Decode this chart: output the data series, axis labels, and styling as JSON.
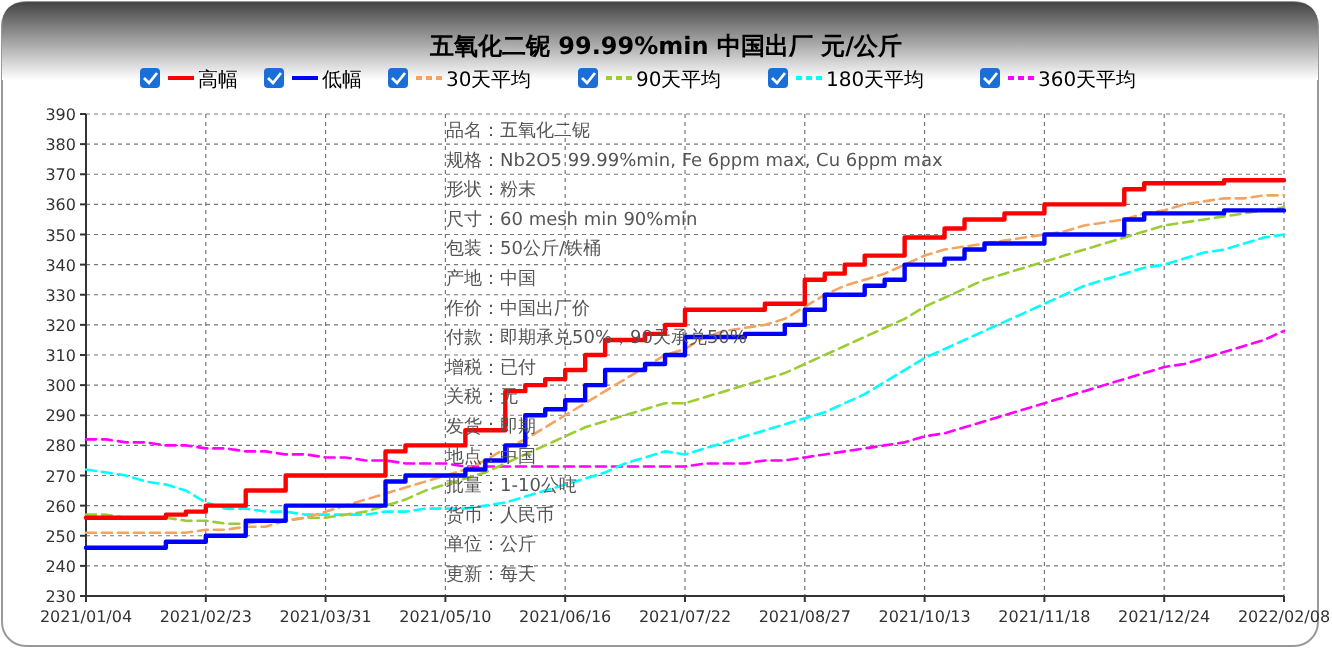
{
  "chart_data": {
    "type": "line",
    "title": "五氧化二铌 99.99%min 中国出厂 元/公斤",
    "categories": [
      "2021/01/04",
      null,
      null,
      null,
      null,
      null,
      "2021/02/23",
      null,
      null,
      null,
      null,
      null,
      "2021/03/31",
      null,
      null,
      null,
      null,
      null,
      "2021/05/10",
      null,
      null,
      null,
      null,
      null,
      "2021/06/16",
      null,
      null,
      null,
      null,
      null,
      "2021/07/22",
      null,
      null,
      null,
      null,
      null,
      "2021/08/27",
      null,
      null,
      null,
      null,
      null,
      "2021/10/13",
      null,
      null,
      null,
      null,
      null,
      "2021/11/18",
      null,
      null,
      null,
      null,
      null,
      "2021/12/24",
      null,
      null,
      null,
      null,
      null,
      "2022/02/08"
    ],
    "series": [
      {
        "name": "高幅",
        "color": "#ff0000",
        "type": "step",
        "line_style": "solid",
        "values": [
          256,
          256,
          256,
          256,
          257,
          258,
          260,
          260,
          265,
          265,
          270,
          270,
          270,
          270,
          270,
          278,
          280,
          280,
          280,
          285,
          285,
          298,
          300,
          302,
          305,
          310,
          315,
          315,
          317,
          320,
          325,
          325,
          325,
          325,
          327,
          327,
          335,
          337,
          340,
          343,
          343,
          349,
          349,
          352,
          355,
          355,
          357,
          357,
          360,
          360,
          360,
          360,
          365,
          367,
          367,
          367,
          367,
          368,
          368,
          368,
          368
        ]
      },
      {
        "name": "低幅",
        "color": "#0000ff",
        "type": "step",
        "line_style": "solid",
        "values": [
          246,
          246,
          246,
          246,
          248,
          248,
          250,
          250,
          255,
          255,
          260,
          260,
          260,
          260,
          260,
          268,
          270,
          270,
          270,
          272,
          275,
          280,
          290,
          292,
          295,
          300,
          305,
          305,
          307,
          310,
          316,
          316,
          316,
          317,
          317,
          320,
          325,
          330,
          330,
          333,
          335,
          340,
          340,
          342,
          345,
          347,
          347,
          347,
          350,
          350,
          350,
          350,
          355,
          357,
          357,
          357,
          357,
          358,
          358,
          358,
          358
        ]
      },
      {
        "name": "30天平均",
        "color": "#f4a460",
        "type": "line",
        "line_style": "dashed",
        "values": [
          251,
          251,
          251,
          251,
          251,
          251,
          252,
          252,
          253,
          253,
          255,
          256,
          258,
          260,
          262,
          264,
          266,
          268,
          270,
          272,
          275,
          279,
          282,
          286,
          290,
          294,
          298,
          302,
          306,
          310,
          312,
          316,
          318,
          319,
          320,
          322,
          326,
          330,
          333,
          335,
          337,
          340,
          343,
          345,
          346,
          347,
          348,
          349,
          350,
          351,
          353,
          354,
          355,
          357,
          358,
          360,
          361,
          362,
          362,
          363,
          363
        ]
      },
      {
        "name": "90天平均",
        "color": "#9acd32",
        "type": "line",
        "line_style": "dashed",
        "values": [
          257,
          257,
          256,
          256,
          256,
          255,
          255,
          254,
          254,
          255,
          255,
          256,
          256,
          257,
          258,
          260,
          262,
          265,
          267,
          269,
          271,
          274,
          277,
          280,
          283,
          286,
          288,
          290,
          292,
          294,
          294,
          296,
          298,
          300,
          302,
          304,
          307,
          310,
          313,
          316,
          319,
          322,
          326,
          329,
          332,
          335,
          337,
          339,
          341,
          343,
          345,
          347,
          349,
          351,
          353,
          354,
          355,
          356,
          357,
          358,
          359
        ]
      },
      {
        "name": "180天平均",
        "color": "#00ffff",
        "type": "line",
        "line_style": "dashed",
        "values": [
          272,
          271,
          270,
          268,
          267,
          265,
          261,
          259,
          259,
          258,
          258,
          257,
          257,
          257,
          257,
          258,
          258,
          259,
          259,
          259,
          260,
          261,
          263,
          265,
          267,
          269,
          271,
          274,
          276,
          278,
          277,
          279,
          281,
          283,
          285,
          287,
          289,
          291,
          294,
          297,
          301,
          305,
          309,
          312,
          315,
          318,
          321,
          324,
          327,
          330,
          333,
          335,
          337,
          339,
          340,
          342,
          344,
          345,
          347,
          349,
          350
        ]
      },
      {
        "name": "360天平均",
        "color": "#ff00ff",
        "type": "line",
        "line_style": "dashed",
        "values": [
          282,
          282,
          281,
          281,
          280,
          280,
          279,
          279,
          278,
          278,
          277,
          277,
          276,
          276,
          275,
          275,
          274,
          274,
          274,
          273,
          273,
          273,
          273,
          273,
          273,
          273,
          273,
          273,
          273,
          273,
          273,
          274,
          274,
          274,
          275,
          275,
          276,
          277,
          278,
          279,
          280,
          281,
          283,
          284,
          286,
          288,
          290,
          292,
          294,
          296,
          298,
          300,
          302,
          304,
          306,
          307,
          309,
          311,
          313,
          315,
          318
        ]
      }
    ],
    "ylim": [
      230,
      390
    ],
    "yticks": [
      230,
      240,
      250,
      260,
      270,
      280,
      290,
      300,
      310,
      320,
      330,
      340,
      350,
      360,
      370,
      380,
      390
    ],
    "grid": true,
    "legend": "top",
    "annotations": [
      "品名：五氧化二铌",
      "规格：Nb2O5 99.99%min, Fe 6ppm max, Cu 6ppm max",
      "形状：粉末",
      "尺寸：60 mesh min 90%min",
      "包装：50公斤/铁桶",
      "产地：中国",
      "作价：中国出厂价",
      "付款：即期承兑50%，90天承兑50%",
      "增税：已付",
      "关税：无",
      "发货：即期",
      "地点：中国",
      "批量：1-10公吨",
      "货币：人民币",
      "单位：公斤",
      "更新：每天"
    ]
  }
}
